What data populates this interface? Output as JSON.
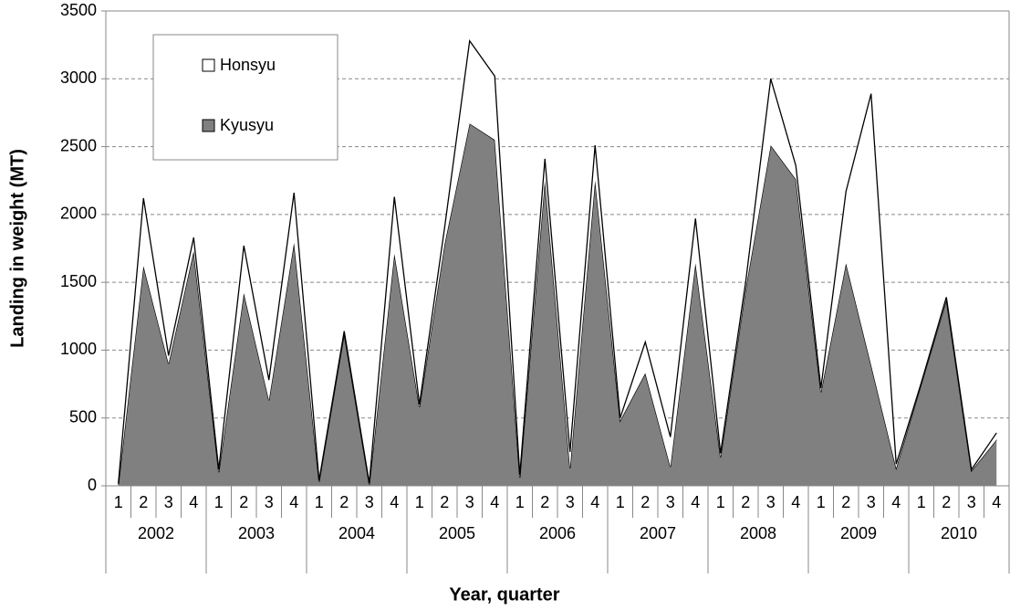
{
  "chart_data": {
    "type": "stacked-area",
    "x_label": "Year, quarter",
    "y_label": "Landing in weight (MT)",
    "categories": [
      "1",
      "2",
      "3",
      "4",
      "1",
      "2",
      "3",
      "4",
      "1",
      "2",
      "3",
      "4",
      "1",
      "2",
      "3",
      "4",
      "1",
      "2",
      "3",
      "4",
      "1",
      "2",
      "3",
      "4",
      "1",
      "2",
      "3",
      "4",
      "1",
      "2",
      "3",
      "4",
      "1",
      "2",
      "3",
      "4"
    ],
    "groups": [
      "2002",
      "2003",
      "2004",
      "2005",
      "2006",
      "2007",
      "2008",
      "2009",
      "2010"
    ],
    "series": [
      {
        "name": "Kyusyu",
        "color": "#808080",
        "values": [
          10,
          1620,
          900,
          1730,
          100,
          1420,
          630,
          1790,
          30,
          1120,
          10,
          1710,
          580,
          1780,
          2670,
          2550,
          60,
          2250,
          130,
          2250,
          480,
          830,
          140,
          1640,
          210,
          1450,
          2510,
          2260,
          690,
          1640,
          890,
          130,
          750,
          1370,
          110,
          340
        ]
      },
      {
        "name": "Honsyu",
        "color": "#ffffff",
        "values": [
          10,
          500,
          60,
          100,
          20,
          350,
          150,
          370,
          10,
          20,
          10,
          420,
          20,
          120,
          610,
          470,
          20,
          160,
          120,
          260,
          20,
          230,
          220,
          330,
          30,
          50,
          490,
          100,
          30,
          530,
          2000,
          30,
          10,
          20,
          10,
          50
        ]
      }
    ],
    "ylim": [
      0,
      3500
    ],
    "yticks": [
      0,
      500,
      1000,
      1500,
      2000,
      2500,
      3000,
      3500
    ],
    "grid": true
  }
}
